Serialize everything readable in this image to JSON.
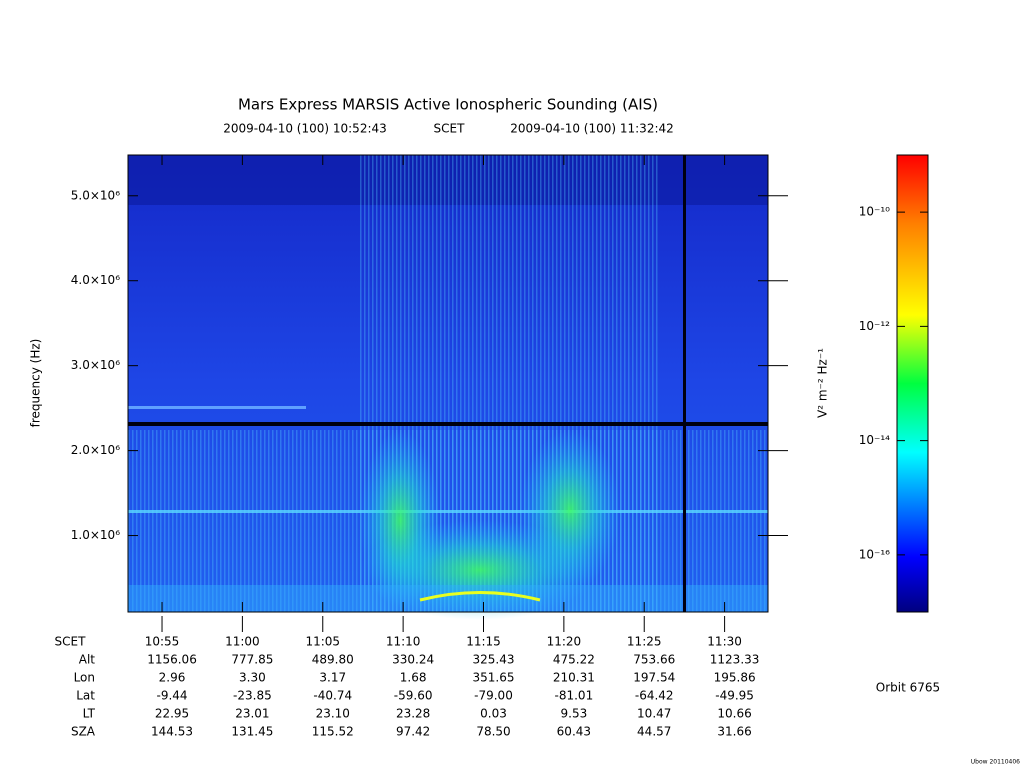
{
  "chart_data": {
    "type": "spectrogram",
    "title": "Mars Express MARSIS Active Ionospheric Sounding (AIS)",
    "start": "2009-04-10 (100) 10:52:43",
    "scet_label": "SCET",
    "end": "2009-04-10 (100) 11:32:42",
    "y_label": "frequency (Hz)",
    "xlim": [
      "2009-04-10T10:52:53",
      "2009-04-10T11:32:42"
    ],
    "xticks": [
      {
        "value": "2009-04-10T10:55",
        "label": "10:55"
      },
      {
        "value": "2009-04-10T11:00",
        "label": "11:00"
      },
      {
        "value": "2009-04-10T11:05",
        "label": "11:05"
      },
      {
        "value": "2009-04-10T11:10",
        "label": "11:10"
      },
      {
        "value": "2009-04-10T11:15",
        "label": "11:15"
      },
      {
        "value": "2009-04-10T11:20",
        "label": "11:20"
      },
      {
        "value": "2009-04-10T11:25",
        "label": "11:25"
      },
      {
        "value": "2009-04-10T11:30",
        "label": "11:30"
      }
    ],
    "ylim": [
      100000,
      5480000
    ],
    "yticks": [
      {
        "value": 1000000,
        "label": "1.0×10⁶"
      },
      {
        "value": 2000000,
        "label": "2.0×10⁶"
      },
      {
        "value": 3000000,
        "label": "3.0×10⁶"
      },
      {
        "value": 4000000,
        "label": "4.0×10⁶"
      },
      {
        "value": 5000000,
        "label": "5.0×10⁶"
      }
    ],
    "colorbar": {
      "label": "V² m⁻² Hz⁻¹",
      "log_scale": true,
      "lim": [
        1e-17,
        1e-09
      ],
      "ticks": [
        {
          "value": 1e-16,
          "label": "10⁻¹⁶"
        },
        {
          "value": 1e-14,
          "label": "10⁻¹⁴"
        },
        {
          "value": 1e-12,
          "label": "10⁻¹²"
        },
        {
          "value": 1e-10,
          "label": "10⁻¹⁰"
        }
      ]
    },
    "table": {
      "scet_label": "SCET",
      "rows": [
        {
          "label": "Alt",
          "values": [
            "1156.06",
            "777.85",
            "489.80",
            "330.24",
            "325.43",
            "475.22",
            "753.66",
            "1123.33"
          ]
        },
        {
          "label": "Lon",
          "values": [
            "2.96",
            "3.30",
            "3.17",
            "1.68",
            "351.65",
            "210.31",
            "197.54",
            "195.86"
          ]
        },
        {
          "label": "Lat",
          "values": [
            "-9.44",
            "-23.85",
            "-40.74",
            "-59.60",
            "-79.00",
            "-81.01",
            "-64.42",
            "-49.95"
          ]
        },
        {
          "label": "LT",
          "values": [
            "22.95",
            "23.01",
            "23.10",
            "23.28",
            "0.03",
            "9.53",
            "10.47",
            "10.66"
          ]
        },
        {
          "label": "SZA",
          "values": [
            "144.53",
            "131.45",
            "115.52",
            "97.42",
            "78.50",
            "60.43",
            "44.57",
            "31.66"
          ]
        }
      ]
    },
    "orbit": "Orbit 6765",
    "credit": "Ubow 20110406"
  }
}
